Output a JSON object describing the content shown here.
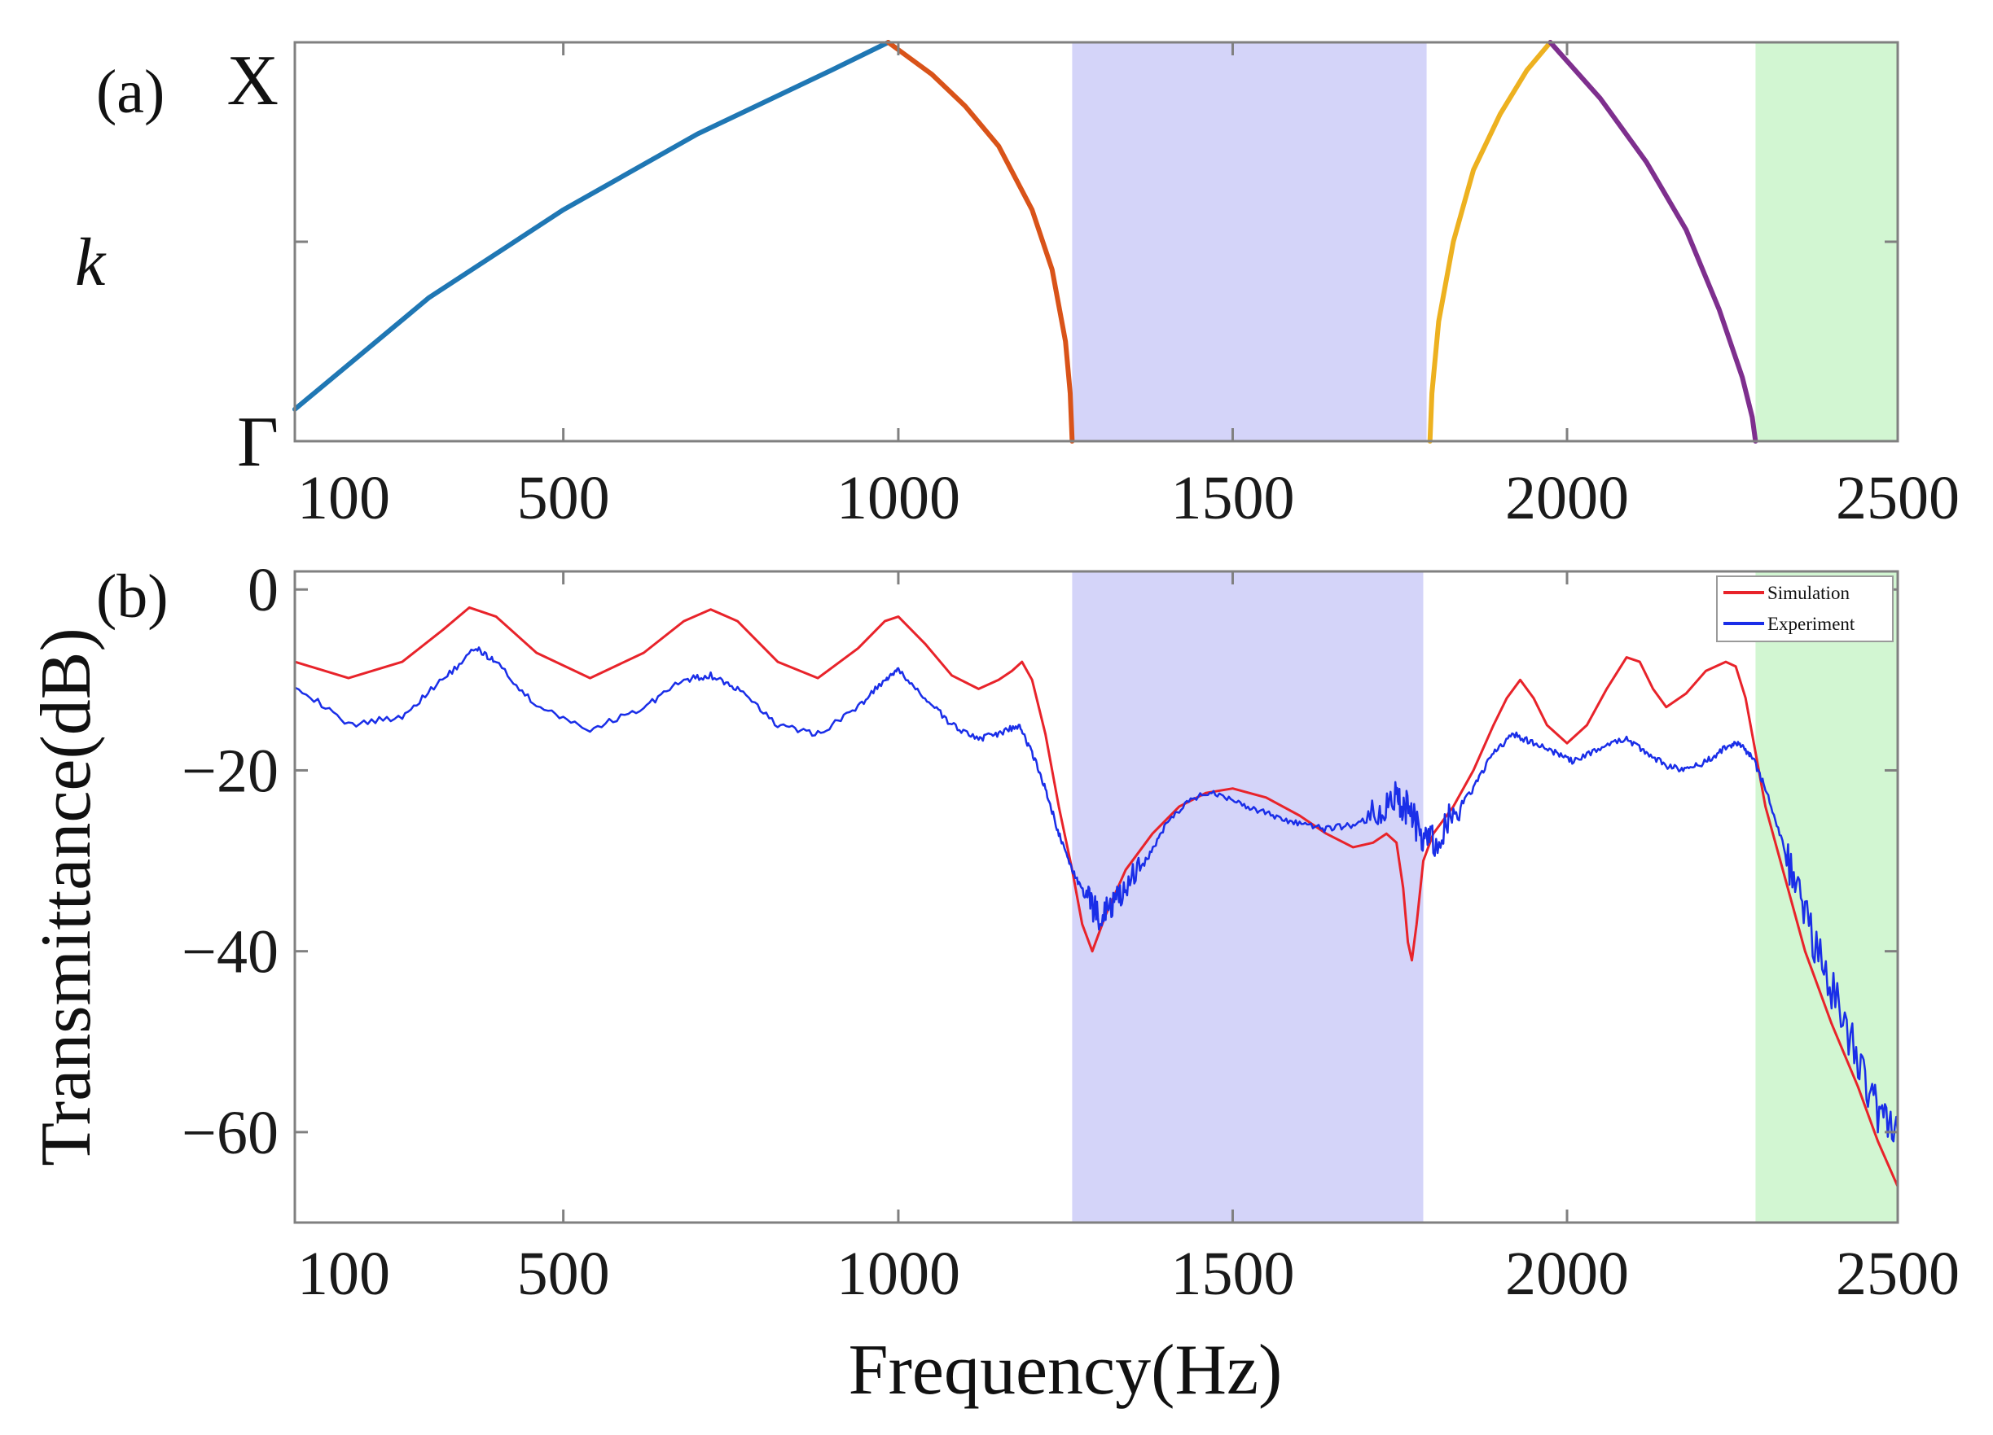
{
  "figure": {
    "panel_a_label": "(a)",
    "panel_b_label": "(b)"
  },
  "colors": {
    "band1": "#1f77b4",
    "band2": "#d95319",
    "band3": "#edb120",
    "band4": "#7e2f8e",
    "gap_blue": "#d4d4f9",
    "gap_green": "#d2f6d2",
    "simulation": "#e8232a",
    "experiment": "#1a2ee8",
    "axis": "#808080"
  },
  "chart_data": [
    {
      "type": "line",
      "panel": "(a)",
      "title": "",
      "xlabel": "",
      "ylabel": "k",
      "xlim": [
        100,
        2500
      ],
      "ylim": [
        0,
        1
      ],
      "xticks": [
        "100",
        "500",
        "1000",
        "1500",
        "2000",
        "2500"
      ],
      "yticks": [
        {
          "value": 0,
          "label": "Γ"
        },
        {
          "value": 0.5,
          "label": ""
        },
        {
          "value": 1,
          "label": "X"
        }
      ],
      "shaded_regions": [
        {
          "from": 1260,
          "to": 1790,
          "color": "gap_blue"
        },
        {
          "from": 2285,
          "to": 2500,
          "color": "gap_green"
        }
      ],
      "series": [
        {
          "name": "band1",
          "color_key": "band1",
          "x": [
            100,
            300,
            500,
            700,
            900,
            985
          ],
          "y": [
            0.08,
            0.36,
            0.58,
            0.77,
            0.93,
            1.0
          ]
        },
        {
          "name": "band2",
          "color_key": "band2",
          "x": [
            985,
            1050,
            1100,
            1150,
            1200,
            1230,
            1250,
            1257,
            1260
          ],
          "y": [
            1.0,
            0.92,
            0.84,
            0.74,
            0.58,
            0.43,
            0.25,
            0.12,
            0.0
          ]
        },
        {
          "name": "band3",
          "color_key": "band3",
          "x": [
            1795,
            1798,
            1808,
            1830,
            1860,
            1900,
            1940,
            1975
          ],
          "y": [
            0.0,
            0.12,
            0.3,
            0.5,
            0.68,
            0.82,
            0.93,
            1.0
          ]
        },
        {
          "name": "band4",
          "color_key": "band4",
          "x": [
            1975,
            2050,
            2120,
            2180,
            2230,
            2265,
            2280,
            2285
          ],
          "y": [
            1.0,
            0.86,
            0.7,
            0.53,
            0.33,
            0.16,
            0.06,
            0.0
          ]
        }
      ]
    },
    {
      "type": "line",
      "panel": "(b)",
      "title": "",
      "xlabel": "Frequency(Hz)",
      "ylabel": "Transmittance(dB)",
      "xlim": [
        100,
        2500
      ],
      "ylim": [
        -70,
        2
      ],
      "xticks": [
        "100",
        "500",
        "1000",
        "1500",
        "2000",
        "2500"
      ],
      "yticks": [
        {
          "value": 0,
          "label": "0"
        },
        {
          "value": -20,
          "label": "−20"
        },
        {
          "value": -40,
          "label": "−40"
        },
        {
          "value": -60,
          "label": "−60"
        }
      ],
      "shaded_regions": [
        {
          "from": 1260,
          "to": 1785,
          "color": "gap_blue"
        },
        {
          "from": 2285,
          "to": 2500,
          "color": "gap_green"
        }
      ],
      "legend": {
        "position": "top-right",
        "entries": [
          "Simulation",
          "Experiment"
        ]
      },
      "series": [
        {
          "name": "Simulation",
          "color_key": "simulation",
          "stroke_width": 3,
          "x": [
            100,
            180,
            260,
            320,
            360,
            400,
            460,
            540,
            620,
            680,
            720,
            760,
            820,
            880,
            940,
            980,
            1000,
            1040,
            1080,
            1120,
            1150,
            1170,
            1185,
            1200,
            1220,
            1240,
            1260,
            1275,
            1290,
            1310,
            1340,
            1380,
            1420,
            1460,
            1500,
            1550,
            1600,
            1640,
            1680,
            1710,
            1730,
            1745,
            1755,
            1762,
            1768,
            1775,
            1785,
            1800,
            1830,
            1860,
            1890,
            1910,
            1930,
            1950,
            1970,
            2000,
            2030,
            2060,
            2090,
            2110,
            2130,
            2150,
            2180,
            2210,
            2240,
            2255,
            2270,
            2285,
            2300,
            2330,
            2360,
            2400,
            2440,
            2470,
            2500
          ],
          "y": [
            -8,
            -9.8,
            -8,
            -4.5,
            -2,
            -3,
            -7,
            -9.8,
            -7,
            -3.5,
            -2.2,
            -3.5,
            -8,
            -9.8,
            -6.5,
            -3.5,
            -3,
            -6,
            -9.5,
            -11,
            -10,
            -9,
            -8,
            -10,
            -16,
            -24,
            -31,
            -37,
            -40,
            -36,
            -31,
            -27,
            -24,
            -22.5,
            -22,
            -23,
            -25,
            -27,
            -28.5,
            -28,
            -27,
            -28,
            -33,
            -39,
            -41,
            -37,
            -30,
            -27,
            -24,
            -20,
            -15,
            -12,
            -10,
            -12,
            -15,
            -17,
            -15,
            -11,
            -7.5,
            -8,
            -11,
            -13,
            -11.5,
            -9,
            -8,
            -8.5,
            -12,
            -18,
            -24,
            -32,
            -40,
            -48,
            -55,
            -61,
            -66
          ]
        },
        {
          "name": "Experiment",
          "color_key": "experiment",
          "stroke_width": 2.5,
          "noisy": true,
          "x": [
            100,
            180,
            260,
            320,
            370,
            400,
            460,
            540,
            620,
            680,
            720,
            760,
            820,
            880,
            940,
            980,
            1000,
            1040,
            1080,
            1120,
            1150,
            1180,
            1200,
            1220,
            1240,
            1260,
            1280,
            1300,
            1320,
            1340,
            1370,
            1400,
            1440,
            1480,
            1520,
            1560,
            1600,
            1640,
            1680,
            1720,
            1745,
            1760,
            1780,
            1800,
            1830,
            1860,
            1890,
            1920,
            1950,
            1980,
            2010,
            2050,
            2090,
            2120,
            2150,
            2180,
            2210,
            2240,
            2260,
            2280,
            2300,
            2330,
            2360,
            2400,
            2440,
            2470,
            2500
          ],
          "y": [
            -10.5,
            -15,
            -14,
            -10,
            -6.5,
            -8,
            -13,
            -15.5,
            -13,
            -10,
            -9.5,
            -11,
            -15,
            -16,
            -13,
            -10,
            -9,
            -12,
            -15,
            -16.5,
            -16,
            -15,
            -18,
            -22,
            -27,
            -31,
            -34,
            -36,
            -35,
            -33,
            -30,
            -26,
            -23,
            -22.5,
            -24,
            -25,
            -26,
            -26.5,
            -26,
            -25,
            -23,
            -24,
            -27,
            -28,
            -25,
            -22,
            -18,
            -16,
            -17,
            -18,
            -19,
            -17.5,
            -16.5,
            -18,
            -19.5,
            -20,
            -19,
            -17.5,
            -17,
            -18.5,
            -22,
            -29,
            -36,
            -44,
            -52,
            -58,
            -60
          ]
        }
      ]
    }
  ]
}
